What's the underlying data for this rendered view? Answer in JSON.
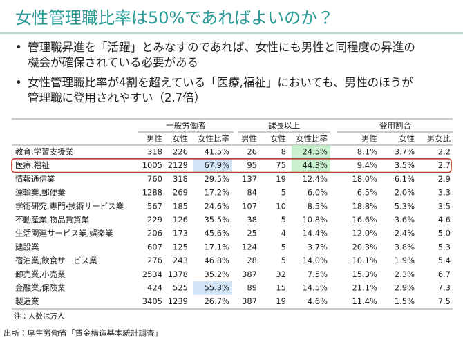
{
  "header": {
    "title": "女性管理職比率は50%であればよいのか？"
  },
  "bullets": [
    [
      "管理職昇進を「活躍」とみなすのであれば、女性にも男性と同程度の昇進の",
      "機会が確保されている必要がある"
    ],
    [
      "女性管理職比率が4割を超えている「医療,福祉」においても、男性のほうが",
      "管理職に登用されやすい（2.7倍）"
    ]
  ],
  "table": {
    "groups": [
      "一般労働者",
      "課長以上",
      "登用割合"
    ],
    "columns": [
      "男性",
      "女性",
      "女性比率",
      "男性",
      "女性",
      "女性比率",
      "男性",
      "女性",
      "男女比"
    ],
    "rows": [
      [
        "教育,学習支援業",
        "318",
        "226",
        "41.5%",
        "26",
        "8",
        "24.5%",
        "8.1%",
        "3.7%",
        "2.2"
      ],
      [
        "医療,福祉",
        "1005",
        "2129",
        "67.9%",
        "95",
        "75",
        "44.3%",
        "9.4%",
        "3.5%",
        "2.7"
      ],
      [
        "情報通信業",
        "760",
        "318",
        "29.5%",
        "137",
        "19",
        "12.4%",
        "18.0%",
        "6.1%",
        "2.9"
      ],
      [
        "運輸業,郵便業",
        "1288",
        "269",
        "17.2%",
        "84",
        "5",
        "6.0%",
        "6.5%",
        "2.0%",
        "3.3"
      ],
      [
        "学術研究,専門・技術サービス業",
        "567",
        "185",
        "24.6%",
        "107",
        "10",
        "8.5%",
        "18.8%",
        "5.3%",
        "3.5"
      ],
      [
        "不動産業,物品賃貸業",
        "229",
        "126",
        "35.5%",
        "38",
        "5",
        "10.8%",
        "16.6%",
        "3.6%",
        "4.6"
      ],
      [
        "生活関連サービス業,娯楽業",
        "206",
        "173",
        "45.6%",
        "25",
        "4",
        "14.4%",
        "12.0%",
        "2.4%",
        "5.0"
      ],
      [
        "建設業",
        "607",
        "125",
        "17.1%",
        "124",
        "5",
        "3.7%",
        "20.3%",
        "3.8%",
        "5.3"
      ],
      [
        "宿泊業,飲食サービス業",
        "276",
        "243",
        "46.8%",
        "28",
        "5",
        "14.0%",
        "10.1%",
        "1.9%",
        "5.4"
      ],
      [
        "卸売業,小売業",
        "2534",
        "1378",
        "35.2%",
        "387",
        "32",
        "7.5%",
        "15.3%",
        "2.3%",
        "6.7"
      ],
      [
        "金融業,保険業",
        "424",
        "525",
        "55.3%",
        "89",
        "15",
        "14.5%",
        "21.1%",
        "2.9%",
        "7.3"
      ],
      [
        "製造業",
        "3405",
        "1239",
        "26.7%",
        "387",
        "19",
        "4.6%",
        "11.4%",
        "1.5%",
        "7.5"
      ]
    ],
    "note": "注：人数は万人"
  },
  "source": "出所：厚生労働省「賃金構造基本統計調査」"
}
